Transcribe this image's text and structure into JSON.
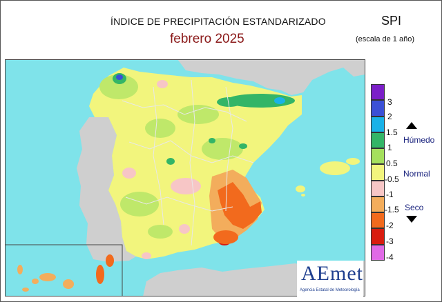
{
  "title": "ÍNDICE DE PRECIPITACIÓN ESTANDARIZADO",
  "period": "febrero  2025",
  "index_name": "SPI",
  "scale_note": "(escala de 1 año)",
  "legend": {
    "ticks": [
      "3",
      "2",
      "1.5",
      "1",
      "0.5",
      "-0.5",
      "-1",
      "-1.5",
      "-2",
      "-3",
      "-4"
    ],
    "bands": [
      {
        "color": "#7b1fc8"
      },
      {
        "color": "#3b50d6"
      },
      {
        "color": "#19b2e8"
      },
      {
        "color": "#33b567"
      },
      {
        "color": "#a5e05d"
      },
      {
        "color": "#f2f57d"
      },
      {
        "color": "#f7c6c6"
      },
      {
        "color": "#f3ad5c"
      },
      {
        "color": "#f26a1d"
      },
      {
        "color": "#d81c0f"
      },
      {
        "color": "#e06ae6"
      }
    ],
    "label_wet": "Húmedo",
    "label_normal": "Normal",
    "label_dry": "Seco"
  },
  "map_colors": {
    "sea": "#7fe3ea",
    "foreign_land": "#cfcfcf",
    "normal": "#f2f57d",
    "light_wet": "#bfe86a",
    "wet": "#33b567",
    "very_wet": "#19b2e8",
    "extreme_wet": "#3b50d6",
    "light_dry": "#f7c6c6",
    "dry": "#f3ad5c",
    "very_dry": "#f26a1d",
    "extreme_dry": "#d81c0f",
    "boundary": "#e8e8e8"
  },
  "logo": {
    "wordmark": "AEmet",
    "caption": "Agencia Estatal de Meteorología"
  }
}
